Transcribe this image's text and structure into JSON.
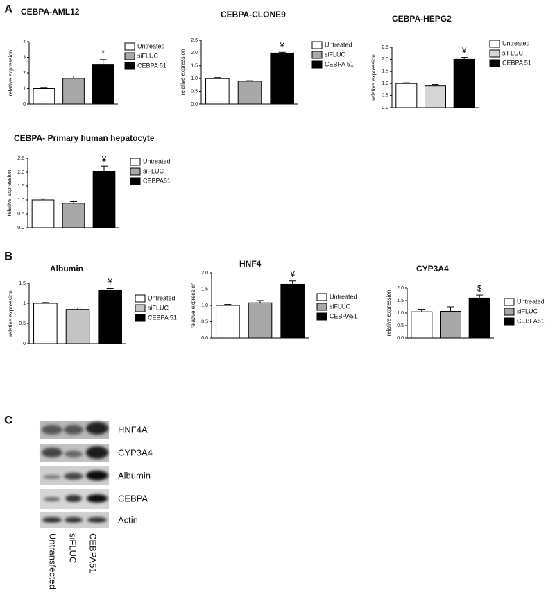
{
  "panels": [
    "A",
    "B",
    "C"
  ],
  "chart_data": [
    {
      "type": "bar",
      "title": "CEBPA-AML12",
      "y_label": "relative expression",
      "annotation": "*",
      "ylim": [
        0,
        4
      ],
      "yticks": [
        0,
        1,
        2,
        3,
        4
      ],
      "series": [
        {
          "name": "Untreated",
          "color": "#ffffff",
          "values": [
            1.0
          ],
          "errors": [
            0.03
          ]
        },
        {
          "name": "siFLUC",
          "color": "#a8a8a8",
          "values": [
            1.65
          ],
          "errors": [
            0.15
          ]
        },
        {
          "name": "CEBPA 51",
          "color": "#000000",
          "values": [
            2.55
          ],
          "errors": [
            0.3
          ]
        }
      ]
    },
    {
      "type": "bar",
      "title": "CEBPA-CLONE9",
      "y_label": "relative expression",
      "annotation": "¥",
      "ylim": [
        0,
        2.5
      ],
      "yticks": [
        {
          "value": 0,
          "label": "0.0"
        },
        0.5,
        {
          "value": 1,
          "label": "1.0"
        },
        1.5,
        {
          "value": 2,
          "label": "2.0"
        },
        2.5
      ],
      "series": [
        {
          "name": "Untreated",
          "color": "#ffffff",
          "values": [
            1.0
          ],
          "errors": [
            0.04
          ]
        },
        {
          "name": "siFLUC",
          "color": "#a8a8a8",
          "values": [
            0.9
          ],
          "errors": [
            0.02
          ]
        },
        {
          "name": "CEBPA 51",
          "color": "#000000",
          "values": [
            2.0
          ],
          "errors": [
            0.03
          ]
        }
      ]
    },
    {
      "type": "bar",
      "title": "CEBPA-HEPG2",
      "y_label": "relative expression",
      "annotation": "¥",
      "ylim": [
        0,
        2.5
      ],
      "yticks": [
        {
          "value": 0,
          "label": "0.0"
        },
        0.5,
        {
          "value": 1,
          "label": "1.0"
        },
        1.5,
        {
          "value": 2,
          "label": "2.0"
        },
        2.5
      ],
      "series": [
        {
          "name": "Untreated",
          "color": "#ffffff",
          "values": [
            1.0
          ],
          "errors": [
            0.03
          ]
        },
        {
          "name": "siFLUC",
          "color": "#d6d6d6",
          "values": [
            0.9
          ],
          "errors": [
            0.06
          ]
        },
        {
          "name": "CEBPA 51",
          "color": "#000000",
          "values": [
            2.0
          ],
          "errors": [
            0.08
          ]
        }
      ]
    },
    {
      "type": "bar",
      "title": "CEBPA- Primary human hepatocyte",
      "y_label": "relative expression",
      "annotation": "¥",
      "ylim": [
        0,
        2.5
      ],
      "yticks": [
        {
          "value": 0,
          "label": "0.0"
        },
        0.5,
        {
          "value": 1,
          "label": "1.0"
        },
        1.5,
        {
          "value": 2,
          "label": "2.0"
        },
        2.5
      ],
      "series": [
        {
          "name": "Untreated",
          "color": "#ffffff",
          "values": [
            1.0
          ],
          "errors": [
            0.04
          ]
        },
        {
          "name": "siFLUC",
          "color": "#a8a8a8",
          "values": [
            0.88
          ],
          "errors": [
            0.06
          ]
        },
        {
          "name": "CEBPA51",
          "color": "#000000",
          "values": [
            2.02
          ],
          "errors": [
            0.2
          ]
        }
      ]
    },
    {
      "type": "bar",
      "title": "Albumin",
      "y_label": "relative expression",
      "annotation": "¥",
      "ylim": [
        0,
        1.5
      ],
      "yticks": [
        0,
        0.5,
        1,
        1.5
      ],
      "series": [
        {
          "name": "Untreated",
          "color": "#ffffff",
          "values": [
            1.0
          ],
          "errors": [
            0.02
          ]
        },
        {
          "name": "siFLUC",
          "color": "#c4c4c4",
          "values": [
            0.85
          ],
          "errors": [
            0.04
          ]
        },
        {
          "name": "CEBPA 51",
          "color": "#000000",
          "values": [
            1.32
          ],
          "errors": [
            0.05
          ]
        }
      ]
    },
    {
      "type": "bar",
      "title": "HNF4",
      "y_label": "relative expression",
      "annotation": "¥",
      "ylim": [
        0,
        2
      ],
      "yticks": [
        {
          "value": 0,
          "label": "0.0"
        },
        0.5,
        {
          "value": 1,
          "label": "1.0"
        },
        1.5,
        {
          "value": 2,
          "label": "2.0"
        }
      ],
      "series": [
        {
          "name": "Untreated",
          "color": "#ffffff",
          "values": [
            1.0
          ],
          "errors": [
            0.03
          ]
        },
        {
          "name": "siFLUC",
          "color": "#a8a8a8",
          "values": [
            1.08
          ],
          "errors": [
            0.07
          ]
        },
        {
          "name": "CEBPA51",
          "color": "#000000",
          "values": [
            1.65
          ],
          "errors": [
            0.1
          ]
        }
      ]
    },
    {
      "type": "bar",
      "title": "CYP3A4",
      "y_label": "relative expression",
      "annotation": "$",
      "ylim": [
        0,
        2
      ],
      "yticks": [
        {
          "value": 0,
          "label": "0.0"
        },
        0.5,
        {
          "value": 1,
          "label": "1.0"
        },
        1.5,
        {
          "value": 2,
          "label": "2.0"
        }
      ],
      "series": [
        {
          "name": "Untreated",
          "color": "#ffffff",
          "values": [
            1.05
          ],
          "errors": [
            0.1
          ]
        },
        {
          "name": "siFLUC",
          "color": "#a8a8a8",
          "values": [
            1.07
          ],
          "errors": [
            0.18
          ]
        },
        {
          "name": "CEBPA51",
          "color": "#000000",
          "values": [
            1.6
          ],
          "errors": [
            0.12
          ]
        }
      ]
    }
  ],
  "blot": {
    "bands": [
      "HNF4A",
      "CYP3A4",
      "Albumin",
      "CEBPA",
      "Actin"
    ],
    "lanes": [
      "Untransfected",
      "siFLUC",
      "CEBPA51"
    ]
  }
}
